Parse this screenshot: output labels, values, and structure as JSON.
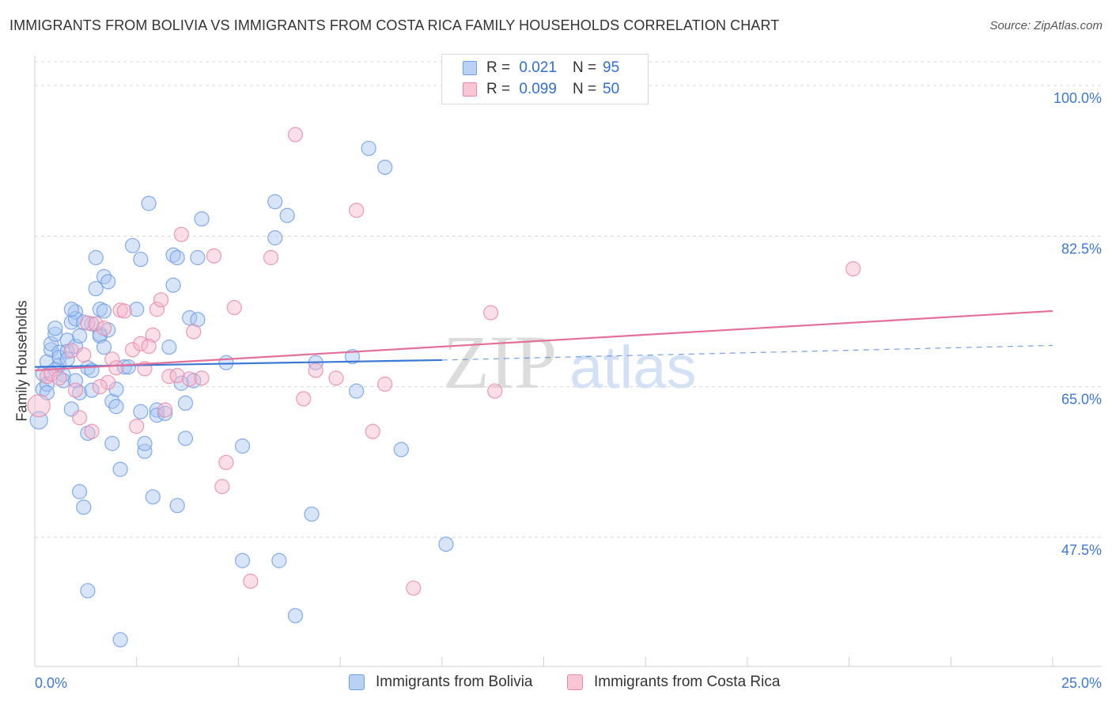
{
  "title": "IMMIGRANTS FROM BOLIVIA VS IMMIGRANTS FROM COSTA RICA FAMILY HOUSEHOLDS CORRELATION CHART",
  "source": "Source: ZipAtlas.com",
  "watermark": {
    "zip": "ZIP",
    "atlas": "atlas"
  },
  "legend": {
    "rows": [
      {
        "r_label": "R =",
        "r_value": "0.021",
        "n_label": "N =",
        "n_value": "95"
      },
      {
        "r_label": "R =",
        "r_value": "0.099",
        "n_label": "N =",
        "n_value": "50"
      }
    ]
  },
  "chart_data": {
    "type": "scatter",
    "title": "IMMIGRANTS FROM BOLIVIA VS IMMIGRANTS FROM COSTA RICA FAMILY HOUSEHOLDS CORRELATION CHART",
    "xlabel": "",
    "ylabel": "Family Households",
    "xlim": [
      0,
      25
    ],
    "ylim": [
      32.5,
      103.5
    ],
    "x_tick_labels": [
      "0.0%",
      "25.0%"
    ],
    "y_ticks": [
      {
        "value": 100.0,
        "label": "100.0%"
      },
      {
        "value": 82.5,
        "label": "82.5%"
      },
      {
        "value": 65.0,
        "label": "65.0%"
      },
      {
        "value": 47.5,
        "label": "47.5%"
      }
    ],
    "series": [
      {
        "name": "Immigrants from Bolivia",
        "color": "#6f9ee8",
        "fill": "#a9c6f2",
        "trend": {
          "x0": 0,
          "y0": 67.3,
          "x1": 10,
          "y1": 68.1,
          "dash_to_x": 25,
          "dash_to_y": 69.8
        },
        "points": [
          [
            0.1,
            61.1
          ],
          [
            0.2,
            64.7
          ],
          [
            0.2,
            66.5
          ],
          [
            0.3,
            67.9
          ],
          [
            0.3,
            65.3
          ],
          [
            0.4,
            69.3
          ],
          [
            0.4,
            70.0
          ],
          [
            0.5,
            71.1
          ],
          [
            0.5,
            71.8
          ],
          [
            0.6,
            67.5
          ],
          [
            0.6,
            69.0
          ],
          [
            0.6,
            68.4
          ],
          [
            0.7,
            66.4
          ],
          [
            0.7,
            65.7
          ],
          [
            0.8,
            70.4
          ],
          [
            0.8,
            69.1
          ],
          [
            0.9,
            62.4
          ],
          [
            0.9,
            72.5
          ],
          [
            1.0,
            73.7
          ],
          [
            1.0,
            72.9
          ],
          [
            0.9,
            74.0
          ],
          [
            1.0,
            65.7
          ],
          [
            1.1,
            64.3
          ],
          [
            1.1,
            52.8
          ],
          [
            1.0,
            69.7
          ],
          [
            1.1,
            70.9
          ],
          [
            1.2,
            51.0
          ],
          [
            1.3,
            67.2
          ],
          [
            1.3,
            59.6
          ],
          [
            1.4,
            64.6
          ],
          [
            1.4,
            66.9
          ],
          [
            1.4,
            72.3
          ],
          [
            1.5,
            80.0
          ],
          [
            1.5,
            76.4
          ],
          [
            1.6,
            74.0
          ],
          [
            1.6,
            71.1
          ],
          [
            1.6,
            70.9
          ],
          [
            1.7,
            69.6
          ],
          [
            1.7,
            77.8
          ],
          [
            1.8,
            77.2
          ],
          [
            1.8,
            71.6
          ],
          [
            1.9,
            63.3
          ],
          [
            1.9,
            58.4
          ],
          [
            2.0,
            64.7
          ],
          [
            2.0,
            62.7
          ],
          [
            2.1,
            55.4
          ],
          [
            2.2,
            67.3
          ],
          [
            2.3,
            67.3
          ],
          [
            2.4,
            81.4
          ],
          [
            2.6,
            79.8
          ],
          [
            2.6,
            62.1
          ],
          [
            2.7,
            57.5
          ],
          [
            2.7,
            58.4
          ],
          [
            2.8,
            86.3
          ],
          [
            2.9,
            52.2
          ],
          [
            3.0,
            62.3
          ],
          [
            3.0,
            61.7
          ],
          [
            3.2,
            61.9
          ],
          [
            3.3,
            69.6
          ],
          [
            3.4,
            76.8
          ],
          [
            3.4,
            80.3
          ],
          [
            3.5,
            80.0
          ],
          [
            3.5,
            51.2
          ],
          [
            3.7,
            63.1
          ],
          [
            3.7,
            59.0
          ],
          [
            3.8,
            73.0
          ],
          [
            3.9,
            65.7
          ],
          [
            4.0,
            80.0
          ],
          [
            4.0,
            72.8
          ],
          [
            4.1,
            84.5
          ],
          [
            4.7,
            67.8
          ],
          [
            5.1,
            44.8
          ],
          [
            5.1,
            58.1
          ],
          [
            5.9,
            86.5
          ],
          [
            5.9,
            82.3
          ],
          [
            6.0,
            44.8
          ],
          [
            6.2,
            84.9
          ],
          [
            6.8,
            50.2
          ],
          [
            6.9,
            67.8
          ],
          [
            7.8,
            68.5
          ],
          [
            6.4,
            38.4
          ],
          [
            7.9,
            64.5
          ],
          [
            8.2,
            92.7
          ],
          [
            8.6,
            90.5
          ],
          [
            9.0,
            57.7
          ],
          [
            10.1,
            46.7
          ],
          [
            1.3,
            41.3
          ],
          [
            2.1,
            35.6
          ],
          [
            0.3,
            64.3
          ],
          [
            0.5,
            67.0
          ],
          [
            0.8,
            68.2
          ],
          [
            1.2,
            72.5
          ],
          [
            1.7,
            73.8
          ],
          [
            2.5,
            74.0
          ],
          [
            3.6,
            65.4
          ]
        ]
      },
      {
        "name": "Immigrants from Costa Rica",
        "color": "#e98aa8",
        "fill": "#f5b8cb",
        "trend": {
          "x0": 0,
          "y0": 66.9,
          "x1": 25,
          "y1": 73.8
        },
        "points": [
          [
            0.1,
            62.8
          ],
          [
            0.3,
            66.2
          ],
          [
            0.4,
            66.5
          ],
          [
            0.9,
            69.2
          ],
          [
            1.0,
            64.6
          ],
          [
            1.1,
            61.4
          ],
          [
            1.2,
            68.7
          ],
          [
            1.3,
            72.4
          ],
          [
            1.5,
            72.3
          ],
          [
            1.7,
            71.8
          ],
          [
            1.8,
            65.5
          ],
          [
            1.9,
            68.2
          ],
          [
            2.0,
            67.2
          ],
          [
            2.1,
            73.9
          ],
          [
            2.2,
            73.8
          ],
          [
            2.4,
            69.3
          ],
          [
            2.5,
            60.4
          ],
          [
            2.6,
            70.0
          ],
          [
            2.7,
            67.1
          ],
          [
            2.9,
            71.0
          ],
          [
            3.0,
            74.0
          ],
          [
            3.1,
            75.1
          ],
          [
            3.2,
            62.3
          ],
          [
            3.3,
            66.2
          ],
          [
            3.5,
            66.3
          ],
          [
            3.6,
            82.7
          ],
          [
            3.8,
            65.9
          ],
          [
            3.9,
            71.4
          ],
          [
            4.1,
            66.0
          ],
          [
            4.4,
            80.2
          ],
          [
            4.6,
            53.4
          ],
          [
            4.7,
            56.2
          ],
          [
            4.9,
            74.2
          ],
          [
            5.3,
            42.4
          ],
          [
            5.8,
            80.0
          ],
          [
            6.4,
            94.3
          ],
          [
            6.6,
            63.6
          ],
          [
            6.9,
            66.9
          ],
          [
            7.4,
            66.0
          ],
          [
            7.9,
            85.5
          ],
          [
            8.3,
            59.8
          ],
          [
            8.6,
            65.3
          ],
          [
            9.3,
            41.6
          ],
          [
            11.2,
            73.6
          ],
          [
            11.3,
            64.5
          ],
          [
            20.1,
            78.7
          ],
          [
            1.4,
            59.8
          ],
          [
            2.8,
            69.7
          ],
          [
            1.6,
            65.0
          ],
          [
            0.6,
            66.0
          ]
        ]
      }
    ]
  },
  "bottom_legend": {
    "items": [
      {
        "label": "Immigrants from Bolivia"
      },
      {
        "label": "Immigrants from Costa Rica"
      }
    ]
  },
  "colors": {
    "blue_line": "#3a78d6",
    "pink_line": "#e2709a",
    "tick_label": "#3d77d4",
    "grid": "#d8d8d8"
  }
}
